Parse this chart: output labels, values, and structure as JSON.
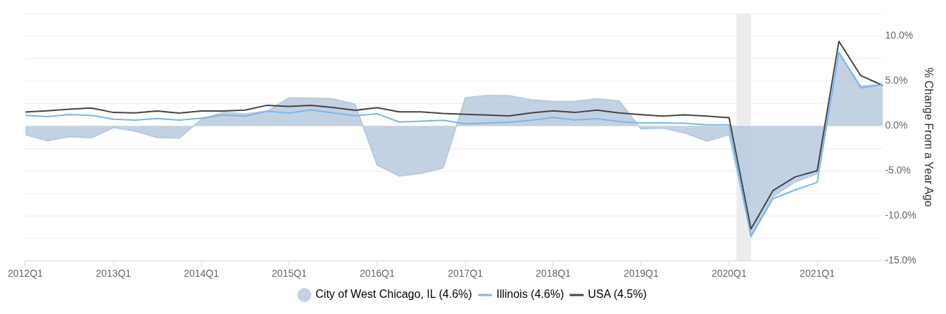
{
  "chart_data": {
    "type": "line",
    "ylabel": "% Change From a Year Ago",
    "x": [
      "2012-01",
      "2012-04",
      "2012-07",
      "2012-10",
      "2013-01",
      "2013-04",
      "2013-07",
      "2013-10",
      "2014-01",
      "2014-04",
      "2014-07",
      "2014-10",
      "2015-01",
      "2015-04",
      "2015-07",
      "2015-10",
      "2016-01",
      "2016-04",
      "2016-07",
      "2016-10",
      "2017-01",
      "2017-04",
      "2017-07",
      "2017-10",
      "2018-01",
      "2018-04",
      "2018-07",
      "2018-10",
      "2019-01",
      "2019-04",
      "2019-07",
      "2019-10",
      "2020-01",
      "2020-04",
      "2020-07",
      "2020-10",
      "2021-01",
      "2021-04",
      "2021-07",
      "2021-10"
    ],
    "series": [
      {
        "name": "City of West Chicago, IL (4.6%)",
        "type": "area",
        "color": "#b9cade",
        "values": [
          -0.96,
          -1.64,
          -1.18,
          -1.33,
          -0.17,
          -0.56,
          -1.28,
          -1.35,
          0.72,
          1.52,
          1.33,
          1.64,
          3.14,
          3.1,
          3.02,
          2.41,
          -4.35,
          -5.56,
          -5.27,
          -4.66,
          3.14,
          3.38,
          3.36,
          2.9,
          2.73,
          2.75,
          3.02,
          2.78,
          -0.31,
          -0.24,
          -0.78,
          -1.69,
          -0.96,
          -12.08,
          -7.85,
          -6.23,
          -5.31,
          7.97,
          4.47,
          4.6
        ]
      },
      {
        "name": "Illinois (4.6%)",
        "type": "line",
        "color": "#7cb5ec",
        "values": [
          1.18,
          1.04,
          1.28,
          1.18,
          0.75,
          0.65,
          0.82,
          0.65,
          0.87,
          1.21,
          1.09,
          1.64,
          1.43,
          1.81,
          1.45,
          1.14,
          1.36,
          0.43,
          0.53,
          0.63,
          0.24,
          0.31,
          0.41,
          0.63,
          0.94,
          0.67,
          0.8,
          0.49,
          0.34,
          0.34,
          0.29,
          0.12,
          0.12,
          -12.32,
          -8.09,
          -7.13,
          -6.28,
          8.21,
          4.22,
          4.6
        ]
      },
      {
        "name": "USA (4.5%)",
        "type": "line",
        "color": "#434348",
        "values": [
          1.54,
          1.69,
          1.86,
          2.0,
          1.5,
          1.45,
          1.67,
          1.43,
          1.67,
          1.67,
          1.76,
          2.3,
          2.17,
          2.3,
          2.05,
          1.74,
          2.03,
          1.57,
          1.57,
          1.4,
          1.3,
          1.21,
          1.11,
          1.45,
          1.69,
          1.5,
          1.76,
          1.45,
          1.25,
          1.09,
          1.23,
          1.09,
          0.92,
          -11.47,
          -7.2,
          -5.67,
          -4.98,
          9.42,
          5.6,
          4.5
        ]
      }
    ],
    "xlim": [
      "2012-01",
      "2021-10"
    ],
    "xticks": [
      {
        "value": "2012-01",
        "label": "2012Q1"
      },
      {
        "value": "2013-01",
        "label": "2013Q1"
      },
      {
        "value": "2014-01",
        "label": "2014Q1"
      },
      {
        "value": "2015-01",
        "label": "2015Q1"
      },
      {
        "value": "2016-01",
        "label": "2016Q1"
      },
      {
        "value": "2017-01",
        "label": "2017Q1"
      },
      {
        "value": "2018-01",
        "label": "2018Q1"
      },
      {
        "value": "2019-01",
        "label": "2019Q1"
      },
      {
        "value": "2020-01",
        "label": "2020Q1"
      },
      {
        "value": "2021-01",
        "label": "2021Q1"
      }
    ],
    "ylim": [
      -15,
      12.5
    ],
    "yticks": [
      {
        "value": -15,
        "label": "-15.0%"
      },
      {
        "value": -12.5,
        "label": null
      },
      {
        "value": -10,
        "label": "-10.0%"
      },
      {
        "value": -7.5,
        "label": null
      },
      {
        "value": -5,
        "label": "-5.0%"
      },
      {
        "value": -2.5,
        "label": null
      },
      {
        "value": 0,
        "label": "0.0%"
      },
      {
        "value": 2.5,
        "label": null
      },
      {
        "value": 5,
        "label": "5.0%"
      },
      {
        "value": 7.5,
        "label": null
      },
      {
        "value": 10,
        "label": "10.0%"
      },
      {
        "value": 12.5,
        "label": null
      }
    ],
    "bands": [
      {
        "axis": "x",
        "from": "2020-02",
        "to": "2020-04",
        "color": "#ececec"
      }
    ],
    "grid": "y",
    "legend": "bottom",
    "marker": "none",
    "line_style": "solid"
  }
}
